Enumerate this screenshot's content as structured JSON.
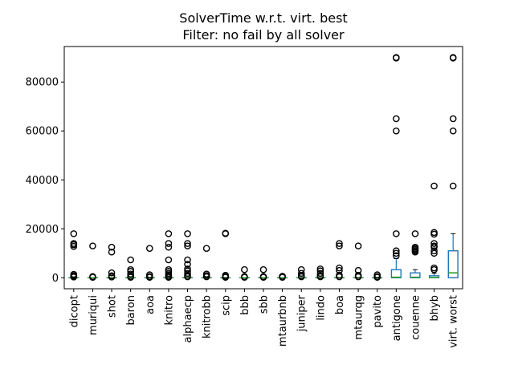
{
  "chart_data": {
    "type": "box",
    "title": "SolverTime w.r.t. virt. best",
    "subtitle": "Filter: no fail by all solver",
    "xlabel": "",
    "ylabel": "",
    "ylim": [
      -4500,
      94500
    ],
    "yticks": [
      0,
      20000,
      40000,
      60000,
      80000
    ],
    "ytick_labels": [
      "0",
      "20000",
      "40000",
      "60000",
      "80000"
    ],
    "grid": false,
    "categories": [
      "dicopt",
      "muriqui",
      "shot",
      "baron",
      "aoa",
      "knitro",
      "alphaecp",
      "knitrobb",
      "scip",
      "bbb",
      "sbb",
      "mtaurbnb",
      "juniper",
      "lindo",
      "boa",
      "mtaurqg",
      "pavito",
      "antigone",
      "couenne",
      "bhyb",
      "virt. worst"
    ],
    "boxes": [
      {
        "name": "dicopt",
        "min": 0,
        "q1": 0,
        "median": 0,
        "q3": 0,
        "max": 0,
        "outliers": [
          18000,
          14000,
          13500,
          12800,
          1400,
          900,
          600,
          300
        ]
      },
      {
        "name": "muriqui",
        "min": 0,
        "q1": 0,
        "median": 0,
        "q3": 0,
        "max": 0,
        "outliers": [
          13000,
          500,
          200
        ]
      },
      {
        "name": "shot",
        "min": 0,
        "q1": 0,
        "median": 0,
        "q3": 0,
        "max": 0,
        "outliers": [
          12500,
          10500,
          2000,
          800,
          300
        ]
      },
      {
        "name": "baron",
        "min": 0,
        "q1": 0,
        "median": 0,
        "q3": 0,
        "max": 0,
        "outliers": [
          7300,
          3300,
          2600,
          1500,
          600,
          200
        ]
      },
      {
        "name": "aoa",
        "min": 0,
        "q1": 0,
        "median": 0,
        "q3": 0,
        "max": 0,
        "outliers": [
          12000,
          1200,
          500,
          200
        ]
      },
      {
        "name": "knitro",
        "min": 0,
        "q1": 0,
        "median": 0,
        "q3": 0,
        "max": 0,
        "outliers": [
          18000,
          14000,
          12500,
          7300,
          3300,
          2600,
          1800,
          1200,
          600,
          200
        ]
      },
      {
        "name": "alphaecp",
        "min": 0,
        "q1": 0,
        "median": 0,
        "q3": 0,
        "max": 0,
        "outliers": [
          18000,
          14000,
          13000,
          7300,
          5500,
          3600,
          2800,
          1800,
          1000,
          400
        ]
      },
      {
        "name": "knitrobb",
        "min": 0,
        "q1": 0,
        "median": 0,
        "q3": 0,
        "max": 0,
        "outliers": [
          12000,
          1500,
          900,
          400
        ]
      },
      {
        "name": "scip",
        "min": 0,
        "q1": 0,
        "median": 0,
        "q3": 0,
        "max": 0,
        "outliers": [
          18200,
          18000,
          1000,
          500,
          200
        ]
      },
      {
        "name": "bbb",
        "min": 0,
        "q1": 0,
        "median": 0,
        "q3": 0,
        "max": 0,
        "outliers": [
          3300,
          500,
          200
        ]
      },
      {
        "name": "sbb",
        "min": 0,
        "q1": 0,
        "median": 0,
        "q3": 0,
        "max": 0,
        "outliers": [
          3300,
          500,
          200
        ]
      },
      {
        "name": "mtaurbnb",
        "min": 0,
        "q1": 0,
        "median": 0,
        "q3": 0,
        "max": 0,
        "outliers": [
          600,
          200
        ]
      },
      {
        "name": "juniper",
        "min": 0,
        "q1": 0,
        "median": 0,
        "q3": 0,
        "max": 0,
        "outliers": [
          3300,
          1800,
          900,
          400
        ]
      },
      {
        "name": "lindo",
        "min": 0,
        "q1": 0,
        "median": 0,
        "q3": 0,
        "max": 0,
        "outliers": [
          3600,
          2800,
          1800,
          900,
          400
        ]
      },
      {
        "name": "boa",
        "min": 0,
        "q1": 0,
        "median": 0,
        "q3": 0,
        "max": 0,
        "outliers": [
          14000,
          13000,
          4000,
          3000,
          1000,
          400
        ]
      },
      {
        "name": "mtaurqg",
        "min": 0,
        "q1": 0,
        "median": 0,
        "q3": 0,
        "max": 0,
        "outliers": [
          13000,
          3000,
          1000,
          400
        ]
      },
      {
        "name": "pavito",
        "min": 0,
        "q1": 0,
        "median": 0,
        "q3": 0,
        "max": 0,
        "outliers": [
          1200,
          500,
          200
        ]
      },
      {
        "name": "antigone",
        "min": 0,
        "q1": 0,
        "median": 200,
        "q3": 3300,
        "max": 7800,
        "outliers": [
          90000,
          89800,
          65000,
          60000,
          18000,
          11000,
          10000,
          9000
        ]
      },
      {
        "name": "couenne",
        "min": 0,
        "q1": 0,
        "median": 200,
        "q3": 2000,
        "max": 3300,
        "outliers": [
          18000,
          12500,
          12000,
          11500,
          11000,
          10500
        ]
      },
      {
        "name": "bhyb",
        "min": 0,
        "q1": 0,
        "median": 100,
        "q3": 800,
        "max": 1800,
        "outliers": [
          37500,
          18500,
          17800,
          14000,
          13000,
          12500,
          11000,
          10000,
          4000,
          3300
        ]
      },
      {
        "name": "virt. worst",
        "min": 0,
        "q1": 0,
        "median": 2000,
        "q3": 11000,
        "max": 18000,
        "outliers": [
          90000,
          89800,
          65000,
          60000,
          37500
        ]
      }
    ],
    "colors": {
      "box": "#1f77b4",
      "median": "#2ca02c",
      "whisker": "#1f77b4",
      "flier": "#000000"
    }
  }
}
